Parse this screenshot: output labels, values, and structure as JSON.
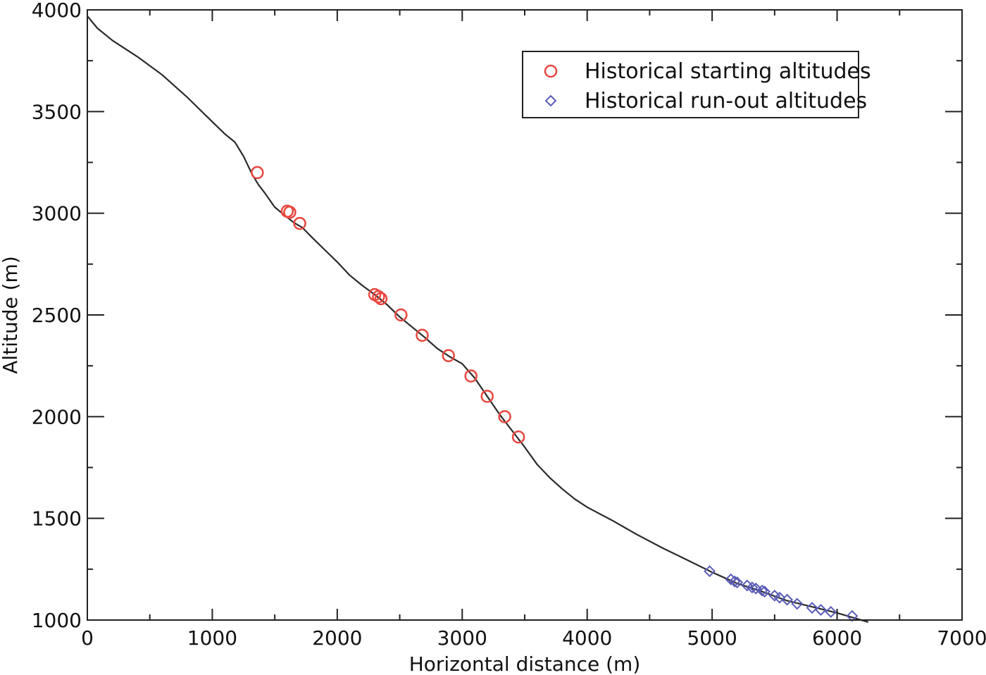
{
  "chart_data": {
    "type": "line",
    "xlabel": "Horizontal distance (m)",
    "ylabel": "Altitude (m)",
    "xlim": [
      0,
      7000
    ],
    "ylim": [
      1000,
      4000
    ],
    "xticks": [
      "0",
      "1000",
      "2000",
      "3000",
      "4000",
      "5000",
      "6000",
      "7000"
    ],
    "yticks": [
      "1000",
      "1500",
      "2000",
      "2500",
      "3000",
      "3500",
      "4000"
    ],
    "grid": false,
    "legend_position": "top-right",
    "profile": {
      "x": [
        0,
        80,
        200,
        400,
        600,
        800,
        1000,
        1100,
        1180,
        1250,
        1320,
        1370,
        1420,
        1500,
        1580,
        1650,
        1720,
        1800,
        1900,
        2000,
        2100,
        2200,
        2300,
        2400,
        2500,
        2600,
        2700,
        2800,
        2900,
        3000,
        3100,
        3200,
        3300,
        3400,
        3500,
        3600,
        3700,
        3800,
        3900,
        4000,
        4200,
        4400,
        4600,
        4800,
        5000,
        5200,
        5400,
        5600,
        5800,
        6000,
        6250
      ],
      "y": [
        3970,
        3910,
        3850,
        3770,
        3680,
        3570,
        3450,
        3390,
        3350,
        3280,
        3190,
        3140,
        3100,
        3030,
        2990,
        2955,
        2930,
        2880,
        2820,
        2760,
        2695,
        2645,
        2600,
        2550,
        2490,
        2440,
        2390,
        2335,
        2295,
        2260,
        2190,
        2100,
        2010,
        1930,
        1850,
        1765,
        1700,
        1645,
        1595,
        1555,
        1490,
        1420,
        1355,
        1295,
        1235,
        1180,
        1140,
        1095,
        1065,
        1035,
        990
      ]
    },
    "series": [
      {
        "name": "Historical starting altitudes",
        "marker": "circle",
        "color": "#e8473f",
        "x": [
          1360,
          1600,
          1620,
          1700,
          2300,
          2330,
          2350,
          2510,
          2680,
          2890,
          3070,
          3200,
          3340,
          3450
        ],
        "y": [
          3200,
          3010,
          3005,
          2950,
          2600,
          2590,
          2580,
          2500,
          2400,
          2300,
          2200,
          2100,
          2000,
          1900
        ]
      },
      {
        "name": "Historical run-out altitudes",
        "marker": "diamond",
        "color": "#5a5cb6",
        "x": [
          4980,
          5150,
          5180,
          5200,
          5280,
          5320,
          5350,
          5400,
          5420,
          5500,
          5540,
          5600,
          5680,
          5800,
          5870,
          5950,
          6120
        ],
        "y": [
          1240,
          1200,
          1190,
          1185,
          1170,
          1160,
          1155,
          1145,
          1140,
          1120,
          1110,
          1100,
          1080,
          1060,
          1050,
          1040,
          1020
        ]
      }
    ]
  }
}
